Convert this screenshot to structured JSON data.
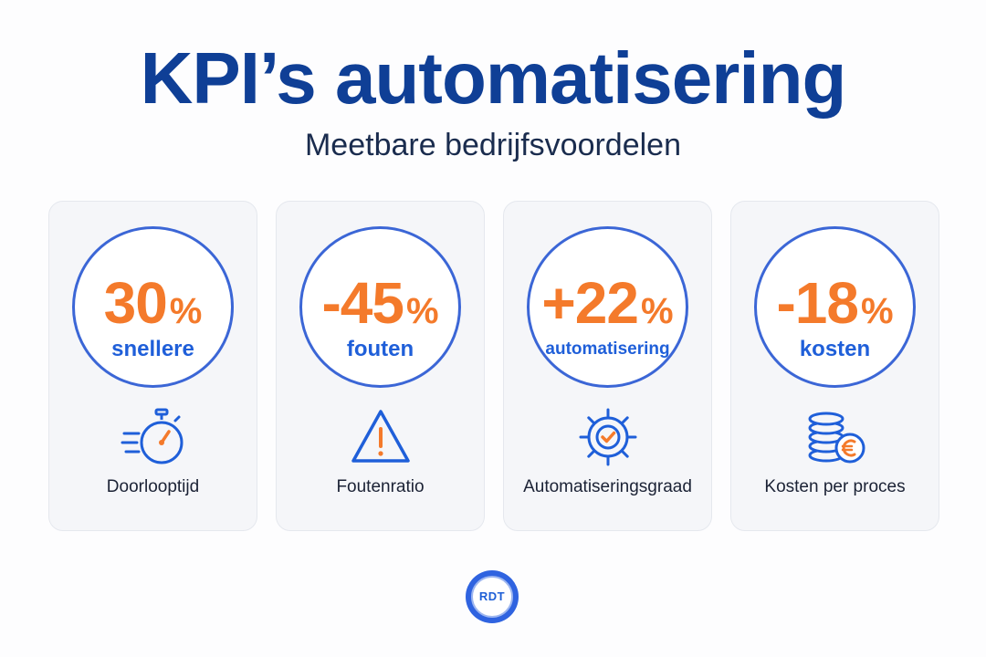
{
  "header": {
    "title": "KPI’s automatisering",
    "subtitle": "Meetbare bedrijfsvoordelen"
  },
  "colors": {
    "title": "#0f3f96",
    "value": "#f47a2b",
    "accent": "#1f5fd9",
    "card_background": "#f5f6f9"
  },
  "cards": [
    {
      "value": "30",
      "unit": "%",
      "sublabel": "snellere",
      "icon": "stopwatch-icon",
      "label": "Doorlooptijd"
    },
    {
      "value": "-45",
      "unit": "%",
      "sublabel": "fouten",
      "icon": "warning-icon",
      "label": "Foutenratio"
    },
    {
      "value": "+22",
      "unit": "%",
      "sublabel": "automatisering",
      "icon": "gear-check-icon",
      "label": "Automatiseringsgraad"
    },
    {
      "value": "-18",
      "unit": "%",
      "sublabel": "kosten",
      "icon": "coins-euro-icon",
      "label": "Kosten per proces"
    }
  ],
  "footer": {
    "logo_text": "RDT"
  }
}
